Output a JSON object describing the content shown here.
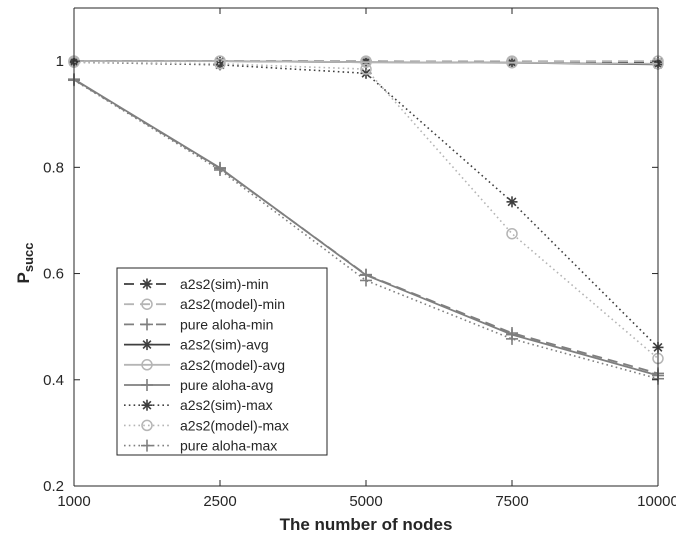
{
  "chart_data": {
    "type": "line",
    "title": "",
    "xlabel": "The number of nodes",
    "ylabel_main": "P",
    "ylabel_sub": "succ",
    "x": [
      1000,
      2500,
      5000,
      7500,
      10000
    ],
    "xticks": [
      "1000",
      "2500",
      "5000",
      "7500",
      "10000"
    ],
    "yticks": [
      "0.2",
      "0.4",
      "0.6",
      "0.8",
      "1"
    ],
    "ylim": [
      0.2,
      1.1
    ],
    "grid": false,
    "legend_position": "bottom-left",
    "series": [
      {
        "name": "a2s2(sim)-min",
        "values": [
          1.0,
          1.0,
          1.0,
          0.998,
          0.998
        ],
        "color": "#3f3f3f",
        "dash": "dashed",
        "marker": "asterisk"
      },
      {
        "name": "a2s2(model)-min",
        "values": [
          1.0,
          1.0,
          1.0,
          1.0,
          1.0
        ],
        "color": "#b5b5b5",
        "dash": "dashed",
        "marker": "circle"
      },
      {
        "name": "pure aloha-min",
        "values": [
          0.965,
          0.798,
          0.598,
          0.488,
          0.412
        ],
        "color": "#7f7f7f",
        "dash": "dashed",
        "marker": "plus"
      },
      {
        "name": "a2s2(sim)-avg",
        "values": [
          1.0,
          1.0,
          0.998,
          0.997,
          0.994
        ],
        "color": "#3f3f3f",
        "dash": "solid",
        "marker": "asterisk"
      },
      {
        "name": "a2s2(model)-avg",
        "values": [
          1.0,
          1.0,
          0.998,
          0.997,
          0.995
        ],
        "color": "#b5b5b5",
        "dash": "solid",
        "marker": "circle"
      },
      {
        "name": "pure aloha-avg",
        "values": [
          0.966,
          0.799,
          0.597,
          0.485,
          0.408
        ],
        "color": "#7f7f7f",
        "dash": "solid",
        "marker": "plus"
      },
      {
        "name": "a2s2(sim)-max",
        "values": [
          0.998,
          0.993,
          0.977,
          0.735,
          0.461
        ],
        "color": "#3f3f3f",
        "dash": "dotted",
        "marker": "asterisk"
      },
      {
        "name": "a2s2(model)-max",
        "values": [
          0.998,
          0.995,
          0.985,
          0.675,
          0.44
        ],
        "color": "#b5b5b5",
        "dash": "dotted",
        "marker": "circle"
      },
      {
        "name": "pure aloha-max",
        "values": [
          0.964,
          0.795,
          0.587,
          0.477,
          0.402
        ],
        "color": "#7f7f7f",
        "dash": "dotted",
        "marker": "plus"
      }
    ]
  }
}
